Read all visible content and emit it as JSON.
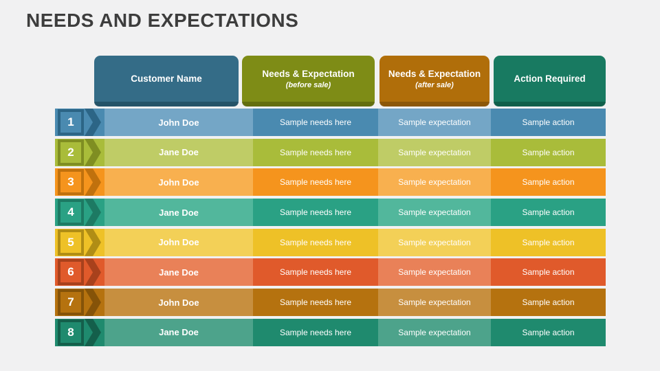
{
  "slide": {
    "title": "NEEDS AND EXPECTATIONS",
    "background_color": "#f1f1f2",
    "title_color": "#3d3d3d"
  },
  "table": {
    "headers": [
      {
        "title": "Customer Name",
        "sub": "",
        "color": "#346c87",
        "shadow_color": "#224f63"
      },
      {
        "title": "Needs & Expectation",
        "sub": "(before sale)",
        "color": "#7e8c16",
        "shadow_color": "#5e690e"
      },
      {
        "title": "Needs & Expectation",
        "sub": "(after sale)",
        "color": "#b06e0a",
        "shadow_color": "#865409"
      },
      {
        "title": "Action Required",
        "sub": "",
        "color": "#187a61",
        "shadow_color": "#0e5a46"
      }
    ],
    "rows": [
      {
        "number": "1",
        "name": "John Doe",
        "needs": "Sample needs here",
        "expectation": "Sample expectation",
        "action": "Sample action",
        "colors": {
          "base": "#4a8ab0",
          "light": "#74a6c6",
          "dark": "#2c6586"
        }
      },
      {
        "number": "2",
        "name": "Jane Doe",
        "needs": "Sample needs here",
        "expectation": "Sample expectation",
        "action": "Sample action",
        "colors": {
          "base": "#a9bc3a",
          "light": "#bfcc66",
          "dark": "#7f8e22"
        }
      },
      {
        "number": "3",
        "name": "John Doe",
        "needs": "Sample needs here",
        "expectation": "Sample expectation",
        "action": "Sample action",
        "colors": {
          "base": "#f5941d",
          "light": "#f8b04f",
          "dark": "#c0710d"
        }
      },
      {
        "number": "4",
        "name": "Jane Doe",
        "needs": "Sample needs here",
        "expectation": "Sample expectation",
        "action": "Sample action",
        "colors": {
          "base": "#2aa184",
          "light": "#52b79c",
          "dark": "#1d7a63"
        }
      },
      {
        "number": "5",
        "name": "John Doe",
        "needs": "Sample needs here",
        "expectation": "Sample expectation",
        "action": "Sample action",
        "colors": {
          "base": "#eec127",
          "light": "#f3d057",
          "dark": "#b08d15"
        }
      },
      {
        "number": "6",
        "name": "Jane Doe",
        "needs": "Sample needs here",
        "expectation": "Sample expectation",
        "action": "Sample action",
        "colors": {
          "base": "#e05a2b",
          "light": "#e98158",
          "dark": "#a8411c"
        }
      },
      {
        "number": "7",
        "name": "John Doe",
        "needs": "Sample needs here",
        "expectation": "Sample expectation",
        "action": "Sample action",
        "colors": {
          "base": "#b5720f",
          "light": "#c78f3f",
          "dark": "#855308"
        }
      },
      {
        "number": "8",
        "name": "Jane Doe",
        "needs": "Sample needs here",
        "expectation": "Sample expectation",
        "action": "Sample action",
        "colors": {
          "base": "#1f8a6e",
          "light": "#4da38b",
          "dark": "#145f4b"
        }
      }
    ]
  }
}
